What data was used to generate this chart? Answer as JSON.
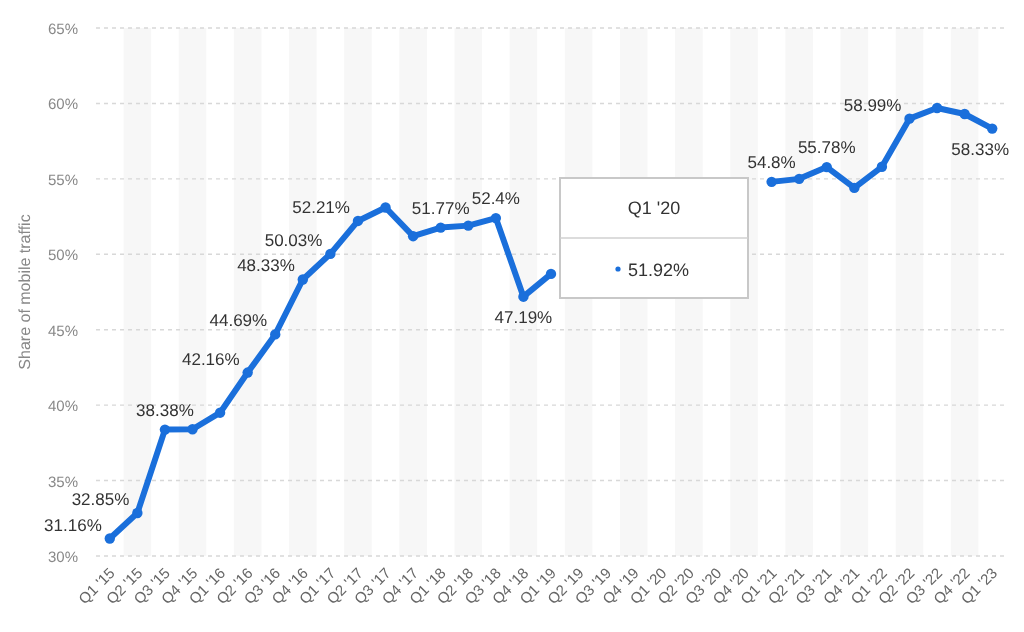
{
  "chart_data": {
    "type": "line",
    "ylabel": "Share of mobile traffic",
    "categories": [
      "Q1 '15",
      "Q2 '15",
      "Q3 '15",
      "Q4 '15",
      "Q1 '16",
      "Q2 '16",
      "Q3 '16",
      "Q4 '16",
      "Q1 '17",
      "Q2 '17",
      "Q3 '17",
      "Q4 '17",
      "Q1 '18",
      "Q2 '18",
      "Q3 '18",
      "Q4 '18",
      "Q1 '19",
      "Q2 '19",
      "Q3 '19",
      "Q4 '19",
      "Q1 '20",
      "Q2 '20",
      "Q3 '20",
      "Q4 '20",
      "Q1 '21",
      "Q2 '21",
      "Q3 '21",
      "Q4 '21",
      "Q1 '22",
      "Q2 '22",
      "Q3 '22",
      "Q4 '22",
      "Q1 '23"
    ],
    "series": [
      {
        "color": "#1a6fdb",
        "values": [
          31.16,
          32.85,
          38.38,
          38.4,
          39.5,
          42.16,
          44.69,
          48.33,
          50.03,
          52.21,
          53.1,
          51.2,
          51.77,
          51.9,
          52.4,
          47.19,
          48.7,
          null,
          null,
          null,
          null,
          null,
          null,
          null,
          54.8,
          55.0,
          55.78,
          54.4,
          55.8,
          58.99,
          59.7,
          59.3,
          58.33
        ],
        "value_labels": [
          "31.16%",
          "32.85%",
          "38.38%",
          null,
          null,
          "42.16%",
          "44.69%",
          "48.33%",
          "50.03%",
          "52.21%",
          null,
          null,
          "51.77%",
          null,
          "52.4%",
          "47.19%",
          null,
          null,
          null,
          null,
          null,
          null,
          null,
          null,
          "54.8%",
          null,
          "55.78%",
          null,
          null,
          "58.99%",
          null,
          null,
          "58.33%"
        ]
      }
    ],
    "ylim": [
      30,
      65
    ],
    "yticks": [
      {
        "value": 30,
        "label": "30%"
      },
      {
        "value": 35,
        "label": "35%"
      },
      {
        "value": 40,
        "label": "40%"
      },
      {
        "value": 45,
        "label": "45%"
      },
      {
        "value": 50,
        "label": "50%"
      },
      {
        "value": 55,
        "label": "55%"
      },
      {
        "value": 60,
        "label": "60%"
      },
      {
        "value": 65,
        "label": "65%"
      }
    ],
    "grid": "y",
    "marker": "circle",
    "line_style": "solid",
    "annotations": [
      "Q1 '20",
      "51.92%"
    ]
  }
}
